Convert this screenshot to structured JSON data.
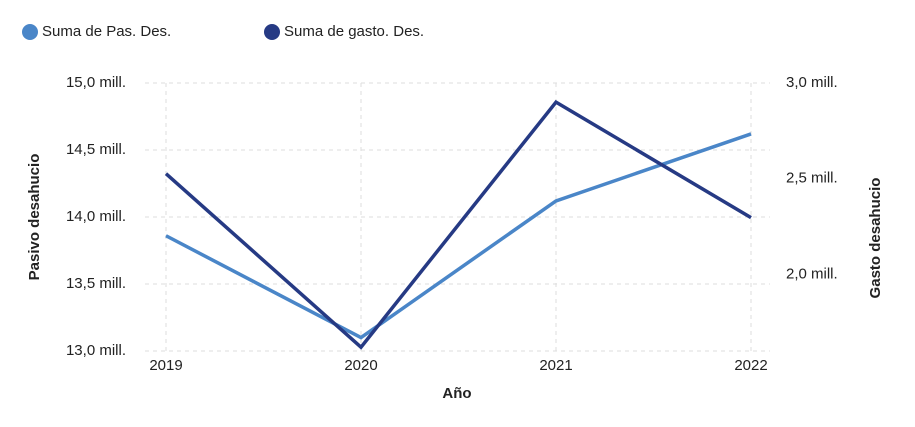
{
  "chart_data": {
    "type": "line",
    "categories": [
      "2019",
      "2020",
      "2021",
      "2022"
    ],
    "series": [
      {
        "name": "Suma de Pas. Des.",
        "color": "#4a86c8",
        "values": [
          13860000,
          13100000,
          14120000,
          14620000
        ]
      },
      {
        "name": "Suma de gasto. Des.",
        "color": "#263a84",
        "axis": "y2",
        "values": [
          2526000,
          1620000,
          2900000,
          2297000
        ]
      }
    ],
    "ylim": [
      13000000,
      15000000
    ],
    "yticks": [
      {
        "value": 13000000,
        "label": "13,0 mill."
      },
      {
        "value": 13500000,
        "label": "13,5 mill."
      },
      {
        "value": 14000000,
        "label": "14,0 mill."
      },
      {
        "value": 14500000,
        "label": "14,5 mill."
      },
      {
        "value": 15000000,
        "label": "15,0 mill."
      }
    ],
    "y2lim": [
      1600000,
      3000000
    ],
    "y2ticks": [
      {
        "value": 2000000,
        "label": "2,0 mill."
      },
      {
        "value": 2500000,
        "label": "2,5 mill."
      },
      {
        "value": 3000000,
        "label": "3,0 mill."
      }
    ],
    "xlabel": "Año",
    "ylabel": "Pasivo desahucio",
    "y2label": "Gasto desahucio",
    "grid": true,
    "legend": "top-left"
  }
}
